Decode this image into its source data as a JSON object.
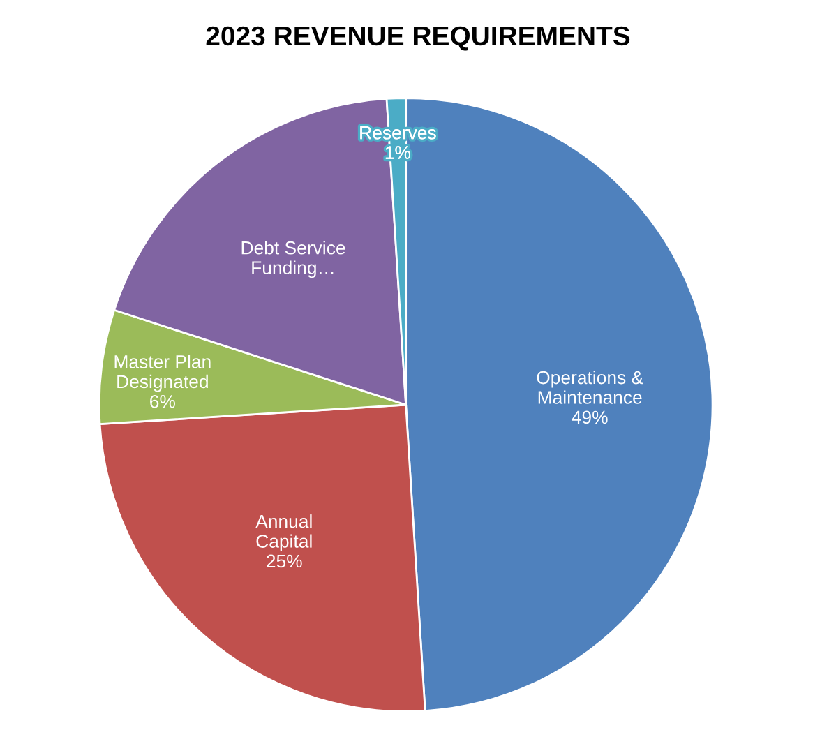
{
  "chart_data": {
    "type": "pie",
    "title": "2023 REVENUE REQUIREMENTS",
    "categories": [
      "Operations &\nMaintenance",
      "Annual\nCapital",
      "Master Plan\nDesignated",
      "Debt Service\nFunding…",
      "Reserves"
    ],
    "values": [
      49,
      25,
      6,
      19,
      1
    ],
    "value_labels": [
      "49%",
      "25%",
      "6%",
      null,
      "1%"
    ],
    "colors": [
      "#4f81bd",
      "#c0504d",
      "#9bbb59",
      "#8064a2",
      "#4bacc6"
    ],
    "legend": false
  }
}
